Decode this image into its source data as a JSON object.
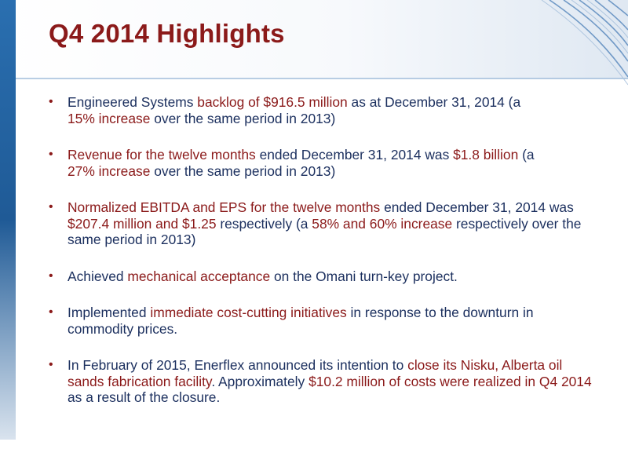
{
  "slide": {
    "title": "Q4 2014 Highlights",
    "colors": {
      "title": "#8b1a1a",
      "highlight": "#8b1a1a",
      "body": "#1b2f5e",
      "accent_blue": "#1f5f9e",
      "header_band": "#e6eef6"
    },
    "bullet_marker": "•",
    "bullets": [
      {
        "segments": [
          {
            "t": "Engineered Systems ",
            "hl": false
          },
          {
            "t": "backlog of $916.5 million",
            "hl": true
          },
          {
            "t": " as at December 31, 2014 (a ",
            "hl": false
          },
          {
            "t": "15% increase",
            "hl": true
          },
          {
            "t": " over the same period in 2013)",
            "hl": false
          }
        ]
      },
      {
        "segments": [
          {
            "t": "Revenue for the twelve months",
            "hl": true
          },
          {
            "t": " ended December 31, 2014 was ",
            "hl": false
          },
          {
            "t": "$1.8 billion",
            "hl": true
          },
          {
            "t": " (a ",
            "hl": false
          },
          {
            "t": "27% increase",
            "hl": true
          },
          {
            "t": " over the same period in 2013)",
            "hl": false
          }
        ]
      },
      {
        "segments": [
          {
            "t": "Normalized EBITDA and EPS for the twelve months",
            "hl": true
          },
          {
            "t": " ended December 31, 2014 was ",
            "hl": false
          },
          {
            "t": "$207.4 million and $1.25",
            "hl": true
          },
          {
            "t": " respectively (a ",
            "hl": false
          },
          {
            "t": "58% and 60% increase",
            "hl": true
          },
          {
            "t": " respectively over the same period in 2013)",
            "hl": false
          }
        ]
      },
      {
        "segments": [
          {
            "t": "Achieved ",
            "hl": false
          },
          {
            "t": "mechanical acceptance",
            "hl": true
          },
          {
            "t": " on the Omani turn-key project.",
            "hl": false
          }
        ]
      },
      {
        "segments": [
          {
            "t": "Implemented ",
            "hl": false
          },
          {
            "t": "immediate cost-cutting initiatives",
            "hl": true
          },
          {
            "t": " in response to the downturn in commodity prices.",
            "hl": false
          }
        ]
      },
      {
        "segments": [
          {
            "t": "In February of 2015, Enerflex announced its intention to ",
            "hl": false
          },
          {
            "t": "close its Nisku, Alberta oil sands fabrication facility",
            "hl": true
          },
          {
            "t": ". Approximately ",
            "hl": false
          },
          {
            "t": "$10.2 million of costs were realized in Q4 2014",
            "hl": true
          },
          {
            "t": " as a result of the closure.",
            "hl": false
          }
        ]
      }
    ]
  }
}
